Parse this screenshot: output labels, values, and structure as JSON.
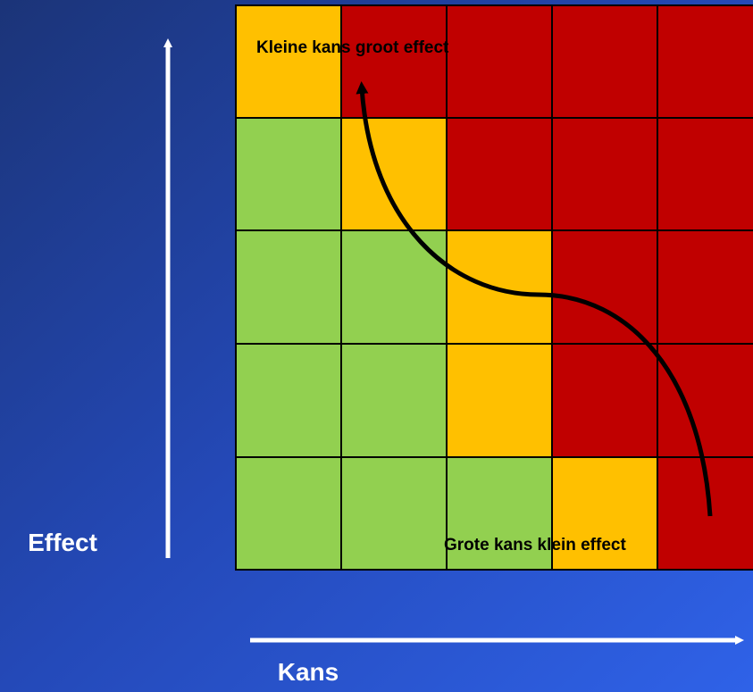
{
  "axes": {
    "y_label": "Effect",
    "x_label": "Kans"
  },
  "annotations": {
    "top": "Kleine kans groot effect",
    "bottom": "Grote kans klein effect"
  }
}
